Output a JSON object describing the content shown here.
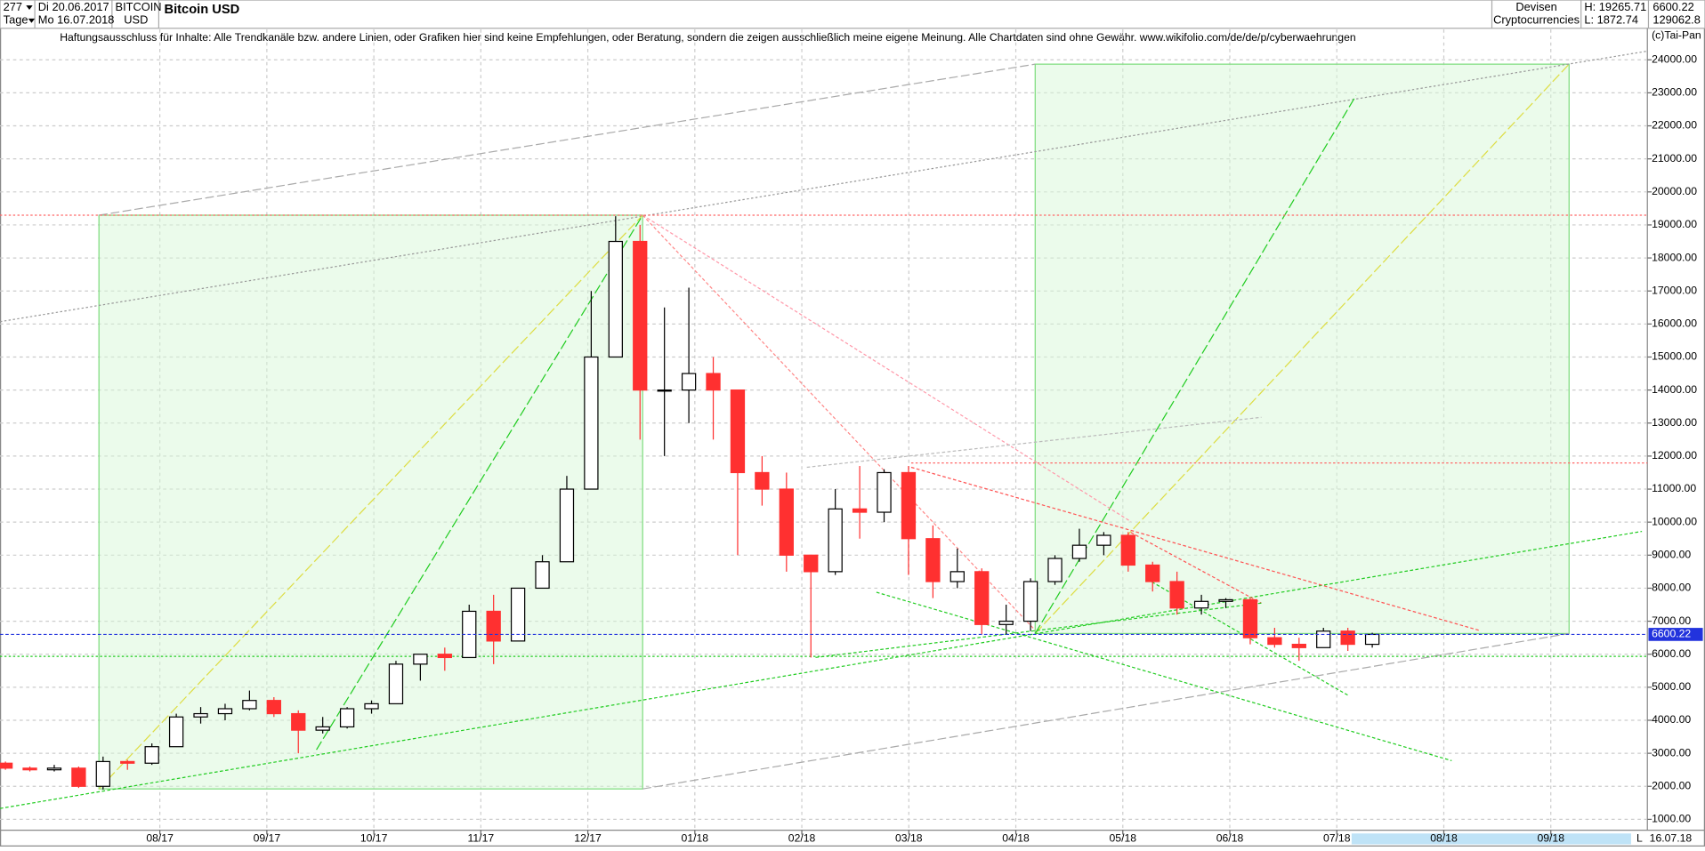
{
  "header": {
    "count": "277",
    "start": "Di 20.06.2017",
    "period": "Tage",
    "end": "Mo 16.07.2018",
    "symbol": "BITCOIN",
    "currency": "USD",
    "title": "Bitcoin USD",
    "disclaimer": "Haftungsausschluss für Inhalte: Alle Trendkanäle bzw. andere Linien, oder Grafiken hier sind keine Empfehlungen, oder Beratung, sondern die zeigen ausschließlich meine eigene Meinung. Alle Chartdaten sind ohne Gewähr.  www.wikifolio.com/de/de/p/cyberwaehrungen",
    "market": "Devisen",
    "group": "Cryptocurrencies",
    "high": "H: 19265.71",
    "low": "L: 1872.74",
    "last": "6600.22",
    "volume": "129062.8",
    "copyright": "(c)Tai-Pan",
    "date": "16.07.18",
    "scale": "L"
  },
  "chart_data": {
    "type": "candlestick",
    "last_price": {
      "value": 6600.22,
      "label": "6600.22"
    },
    "open": [
      2700,
      2550,
      2500,
      2550,
      2000,
      2750,
      2700,
      3200,
      4100,
      4200,
      4350,
      4600,
      4200,
      3700,
      3800,
      4350,
      4500,
      5700,
      6000,
      5900,
      7300,
      6400,
      8000,
      8800,
      11000,
      15000,
      18500,
      14000,
      14000,
      14500,
      14000,
      11500,
      11000,
      9000,
      8500,
      10400,
      10300,
      11500,
      9500,
      8200,
      8500,
      6900,
      7000,
      8200,
      8900,
      9300,
      9600,
      8700,
      8200,
      7400,
      7600,
      7650,
      6500,
      6300,
      6200,
      6700,
      6300
    ],
    "high": [
      2750,
      2600,
      2650,
      2600,
      2900,
      2800,
      3300,
      4200,
      4400,
      4500,
      4900,
      4700,
      4300,
      4100,
      4400,
      4600,
      5800,
      6000,
      6200,
      7500,
      7800,
      8000,
      9000,
      11400,
      17000,
      19265,
      19000,
      16500,
      17100,
      15000,
      14000,
      12000,
      11500,
      9000,
      11000,
      11700,
      11600,
      11700,
      9900,
      9200,
      8600,
      7500,
      8300,
      9000,
      9800,
      9700,
      9700,
      8800,
      8500,
      7800,
      7700,
      7700,
      6800,
      6500,
      6800,
      6800,
      6650
    ],
    "low": [
      2500,
      2450,
      2450,
      1950,
      1900,
      2500,
      2650,
      3200,
      3900,
      4000,
      4300,
      4100,
      3000,
      3600,
      3750,
      4200,
      4500,
      5200,
      5500,
      5900,
      5700,
      6400,
      8000,
      8800,
      11000,
      15000,
      12500,
      12000,
      13000,
      12500,
      9000,
      10500,
      8500,
      5900,
      8400,
      9500,
      10000,
      8400,
      7700,
      8000,
      6600,
      6600,
      6700,
      8100,
      8800,
      9000,
      8500,
      7900,
      7200,
      7200,
      7400,
      6300,
      6200,
      5800,
      6200,
      6100,
      6200
    ],
    "close": [
      2550,
      2500,
      2550,
      2000,
      2750,
      2700,
      3200,
      4100,
      4200,
      4350,
      4600,
      4200,
      3700,
      3800,
      4350,
      4500,
      5700,
      6000,
      5900,
      7300,
      6400,
      8000,
      8800,
      11000,
      15000,
      18500,
      14000,
      14000,
      14500,
      14000,
      11500,
      11000,
      9000,
      8500,
      10400,
      10300,
      11500,
      9500,
      8200,
      8500,
      6900,
      7000,
      8200,
      8900,
      9300,
      9600,
      8700,
      8200,
      7400,
      7600,
      7650,
      6500,
      6300,
      6200,
      6700,
      6300,
      6600
    ],
    "up_color": "#ffffff",
    "down_color": "#ff3030",
    "ylim": [
      1000,
      24000
    ],
    "yticks": [
      {
        "value": 1000,
        "label": "1000.00"
      },
      {
        "value": 2000,
        "label": "2000.00"
      },
      {
        "value": 3000,
        "label": "3000.00"
      },
      {
        "value": 4000,
        "label": "4000.00"
      },
      {
        "value": 5000,
        "label": "5000.00"
      },
      {
        "value": 6000,
        "label": "6000.00"
      },
      {
        "value": 7000,
        "label": "7000.00"
      },
      {
        "value": 8000,
        "label": "8000.00"
      },
      {
        "value": 9000,
        "label": "9000.00"
      },
      {
        "value": 10000,
        "label": "10000.00"
      },
      {
        "value": 11000,
        "label": "11000.00"
      },
      {
        "value": 12000,
        "label": "12000.00"
      },
      {
        "value": 13000,
        "label": "13000.00"
      },
      {
        "value": 14000,
        "label": "14000.00"
      },
      {
        "value": 15000,
        "label": "15000.00"
      },
      {
        "value": 16000,
        "label": "16000.00"
      },
      {
        "value": 17000,
        "label": "17000.00"
      },
      {
        "value": 18000,
        "label": "18000.00"
      },
      {
        "value": 19000,
        "label": "19000.00"
      },
      {
        "value": 20000,
        "label": "20000.00"
      },
      {
        "value": 21000,
        "label": "21000.00"
      },
      {
        "value": 22000,
        "label": "22000.00"
      },
      {
        "value": 23000,
        "label": "23000.00"
      },
      {
        "value": 24000,
        "label": "24000.00"
      }
    ],
    "xticks": [
      "08/17",
      "09/17",
      "10/17",
      "11/17",
      "12/17",
      "01/18",
      "02/18",
      "03/18",
      "04/18",
      "05/18",
      "06/18",
      "07/18",
      "08/18",
      "09/18"
    ],
    "grid": true
  }
}
